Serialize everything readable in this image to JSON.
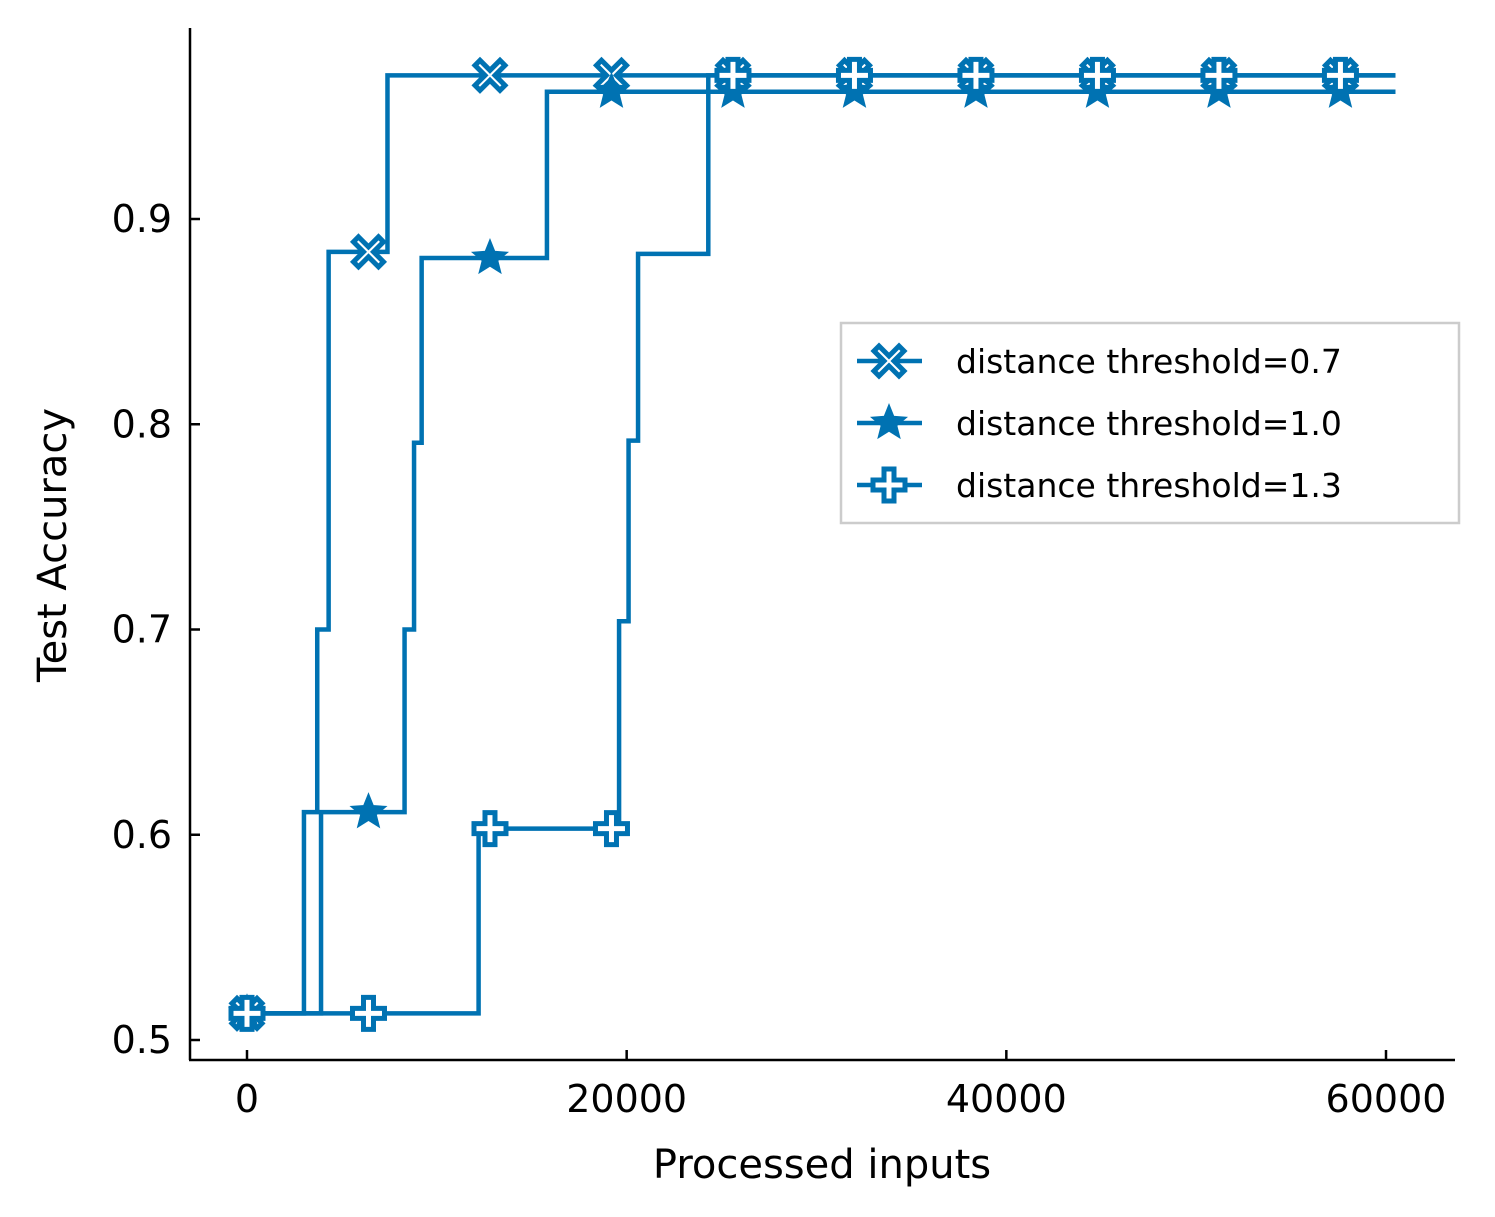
{
  "chart_data": {
    "type": "line",
    "drawstyle": "steps-post",
    "xlabel": "Processed inputs",
    "ylabel": "Test Accuracy",
    "xlim": [
      -3000,
      63500
    ],
    "ylim": [
      0.49,
      0.99
    ],
    "xticks": [
      0,
      20000,
      40000,
      60000
    ],
    "yticks": [
      0.5,
      0.6,
      0.7,
      0.8,
      0.9
    ],
    "xtick_labels": [
      "0",
      "20000",
      "40000",
      "60000"
    ],
    "ytick_labels": [
      "0.5",
      "0.6",
      "0.7",
      "0.8",
      "0.9"
    ],
    "grid": false,
    "legend_placement": "center-right",
    "line_color": "#0072b2",
    "series": [
      {
        "name": "distance threshold=0.7",
        "marker": "circled-x",
        "x": [
          0,
          3000,
          3700,
          4300,
          7400,
          60500
        ],
        "y": [
          0.513,
          0.611,
          0.7,
          0.884,
          0.97,
          0.97
        ],
        "marker_x": [
          0,
          6400,
          12800,
          19200,
          25600,
          32000,
          38400,
          44800,
          51200,
          57600
        ]
      },
      {
        "name": "distance threshold=1.0",
        "marker": "star",
        "x": [
          0,
          3900,
          8300,
          8800,
          9200,
          15800,
          24200,
          60500
        ],
        "y": [
          0.513,
          0.611,
          0.7,
          0.791,
          0.881,
          0.962,
          0.962,
          0.962
        ],
        "marker_x": [
          0,
          6400,
          12800,
          19200,
          25600,
          32000,
          38400,
          44800,
          51200,
          57600
        ]
      },
      {
        "name": "distance threshold=1.3",
        "marker": "plus-square",
        "x": [
          0,
          12200,
          19600,
          20100,
          20600,
          24300,
          60500
        ],
        "y": [
          0.513,
          0.603,
          0.704,
          0.792,
          0.883,
          0.97,
          0.97
        ],
        "marker_x": [
          0,
          6400,
          12800,
          19200,
          25600,
          32000,
          38400,
          44800,
          51200,
          57600
        ]
      }
    ]
  }
}
